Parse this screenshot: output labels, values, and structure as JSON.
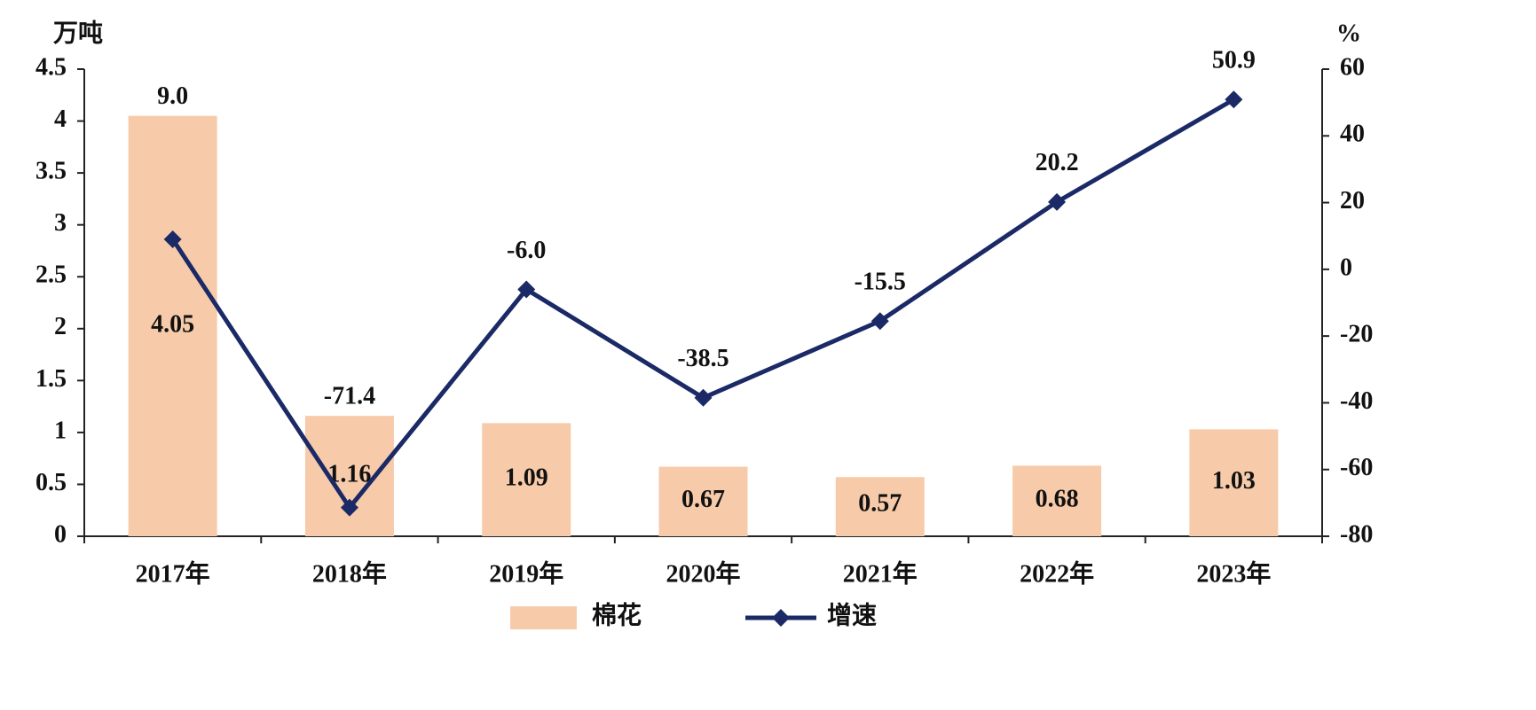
{
  "chart_data": {
    "type": "bar-line",
    "y_axis_label": "万吨",
    "y2_axis_label": "%",
    "categories": [
      "2017年",
      "2018年",
      "2019年",
      "2020年",
      "2021年",
      "2022年",
      "2023年"
    ],
    "series": [
      {
        "name": "棉花",
        "type": "bar",
        "color": "#f7cbaa",
        "values": [
          4.05,
          1.16,
          1.09,
          0.67,
          0.57,
          0.68,
          1.03
        ]
      },
      {
        "name": "增速",
        "type": "line",
        "axis": "y2",
        "color": "#1b2a66",
        "values": [
          9.0,
          -71.4,
          -6.0,
          -38.5,
          -15.5,
          20.2,
          50.9
        ],
        "value_labels": [
          "9.0",
          "-71.4",
          "-6.0",
          "-38.5",
          "-15.5",
          "20.2",
          "50.9"
        ]
      }
    ],
    "ylim": [
      0,
      4.5
    ],
    "yticks": [
      0,
      0.5,
      1,
      1.5,
      2,
      2.5,
      3,
      3.5,
      4,
      4.5
    ],
    "y2lim": [
      -80,
      60
    ],
    "y2ticks": [
      -80,
      -60,
      -40,
      -20,
      0,
      20,
      40,
      60
    ]
  }
}
